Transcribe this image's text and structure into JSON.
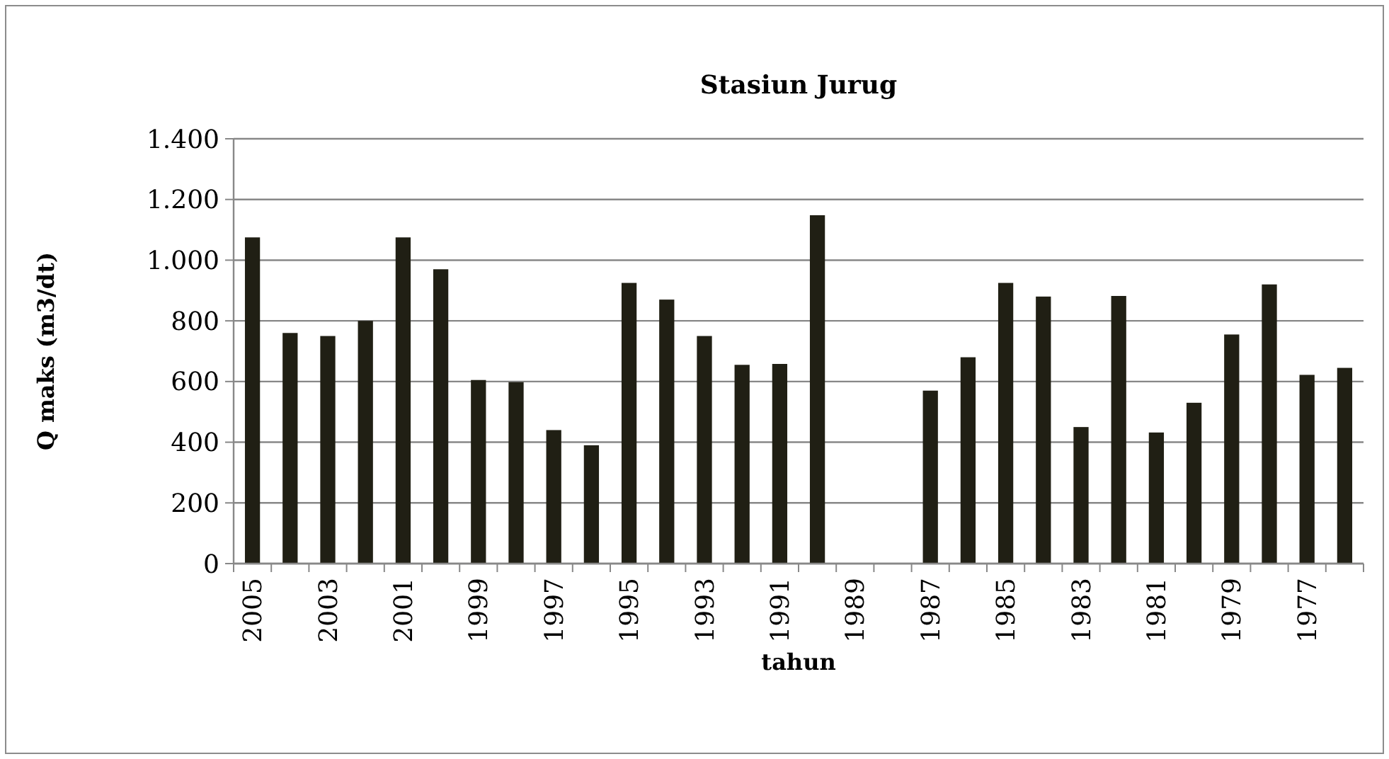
{
  "chart_data": {
    "type": "bar",
    "title": "Stasiun Jurug",
    "xlabel": "tahun",
    "ylabel": "Q maks (m3/dt)",
    "categories": [
      "2005",
      null,
      "2003",
      null,
      "2001",
      null,
      "1999",
      null,
      "1997",
      null,
      "1995",
      null,
      "1993",
      null,
      "1991",
      null,
      "1989",
      null,
      "1987",
      null,
      "1985",
      null,
      "1983",
      null,
      "1981",
      null,
      "1979",
      null,
      "1977",
      null
    ],
    "values": [
      1075,
      760,
      750,
      800,
      1075,
      970,
      605,
      598,
      440,
      390,
      925,
      870,
      750,
      655,
      658,
      1148,
      null,
      null,
      570,
      680,
      925,
      880,
      450,
      882,
      432,
      530,
      755,
      920,
      622,
      645
    ],
    "color": "#201f14",
    "ylim": [
      0,
      1400
    ],
    "yticks": [
      0,
      200,
      400,
      600,
      800,
      {
        "value": 1000,
        "label": "1.000"
      },
      {
        "value": 1200,
        "label": "1.200"
      },
      {
        "value": 1400,
        "label": "1.400"
      }
    ],
    "grid": "y"
  }
}
